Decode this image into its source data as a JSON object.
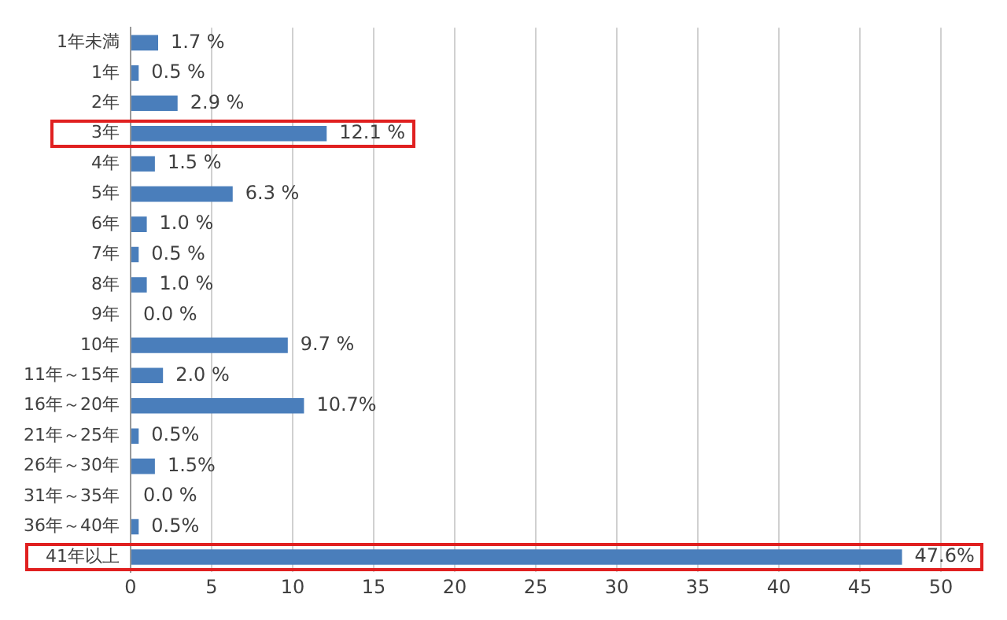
{
  "chart_data": {
    "type": "bar",
    "orientation": "horizontal",
    "categories": [
      "1年未満",
      "1年",
      "2年",
      "3年",
      "4年",
      "5年",
      "6年",
      "7年",
      "8年",
      "9年",
      "10年",
      "11年～15年",
      "16年～20年",
      "21年～25年",
      "26年～30年",
      "31年～35年",
      "36年～40年",
      "41年以上"
    ],
    "values": [
      1.7,
      0.5,
      2.9,
      12.1,
      1.5,
      6.3,
      1.0,
      0.5,
      1.0,
      0.0,
      9.7,
      2.0,
      10.7,
      0.5,
      1.5,
      0.0,
      0.5,
      47.6
    ],
    "value_labels": [
      "1.7 %",
      "0.5 %",
      "2.9 %",
      "12.1 %",
      "1.5 %",
      "6.3 %",
      "1.0 %",
      "0.5 %",
      "1.0 %",
      "0.0 %",
      "9.7 %",
      "2.0 %",
      "10.7%",
      "0.5%",
      "1.5%",
      "0.0 %",
      "0.5%",
      "47.6%"
    ],
    "color": "#4a7ebb",
    "xlim": [
      0,
      50
    ],
    "xticks": [
      0,
      5,
      10,
      15,
      20,
      25,
      30,
      35,
      40,
      45,
      50
    ],
    "grid": "x",
    "legend": false
  }
}
